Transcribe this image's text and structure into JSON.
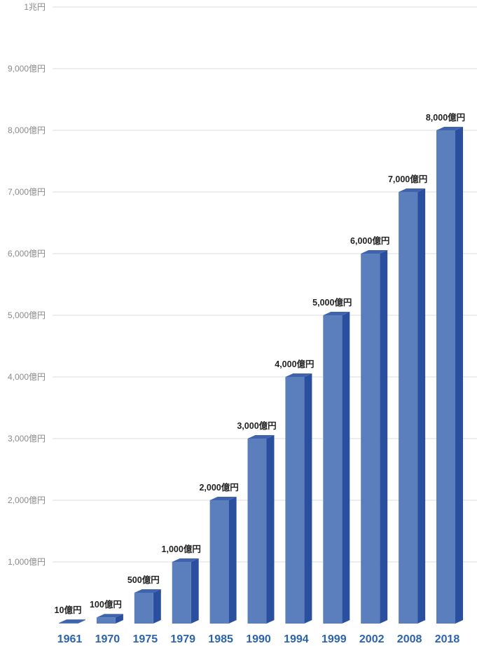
{
  "chart_data": {
    "type": "bar",
    "categories": [
      "1961",
      "1970",
      "1975",
      "1979",
      "1985",
      "1990",
      "1994",
      "1999",
      "2002",
      "2008",
      "2018"
    ],
    "values": [
      10,
      100,
      500,
      1000,
      2000,
      3000,
      4000,
      5000,
      6000,
      7000,
      8000
    ],
    "data_labels": [
      "10億円",
      "100億円",
      "500億円",
      "1,000億円",
      "2,000億円",
      "3,000億円",
      "4,000億円",
      "5,000億円",
      "6,000億円",
      "7,000億円",
      "8,000億円"
    ],
    "y_ticks": [
      {
        "value": 1000,
        "label": "1,000億円"
      },
      {
        "value": 2000,
        "label": "2,000億円"
      },
      {
        "value": 3000,
        "label": "3,000億円"
      },
      {
        "value": 4000,
        "label": "4,000億円"
      },
      {
        "value": 5000,
        "label": "5,000億円"
      },
      {
        "value": 6000,
        "label": "6,000億円"
      },
      {
        "value": 7000,
        "label": "7,000億円"
      },
      {
        "value": 8000,
        "label": "8,000億円"
      },
      {
        "value": 9000,
        "label": "9,000億円"
      },
      {
        "value": 10000,
        "label": "1兆円"
      }
    ],
    "ylim": [
      0,
      10000
    ],
    "grid": true,
    "title": "",
    "xlabel": "",
    "ylabel": "",
    "colors": {
      "bar_front": "#5b7fbd",
      "bar_side": "#2a4f9e",
      "bar_top": "#3f63ad",
      "category_text": "#2b63ad"
    }
  }
}
